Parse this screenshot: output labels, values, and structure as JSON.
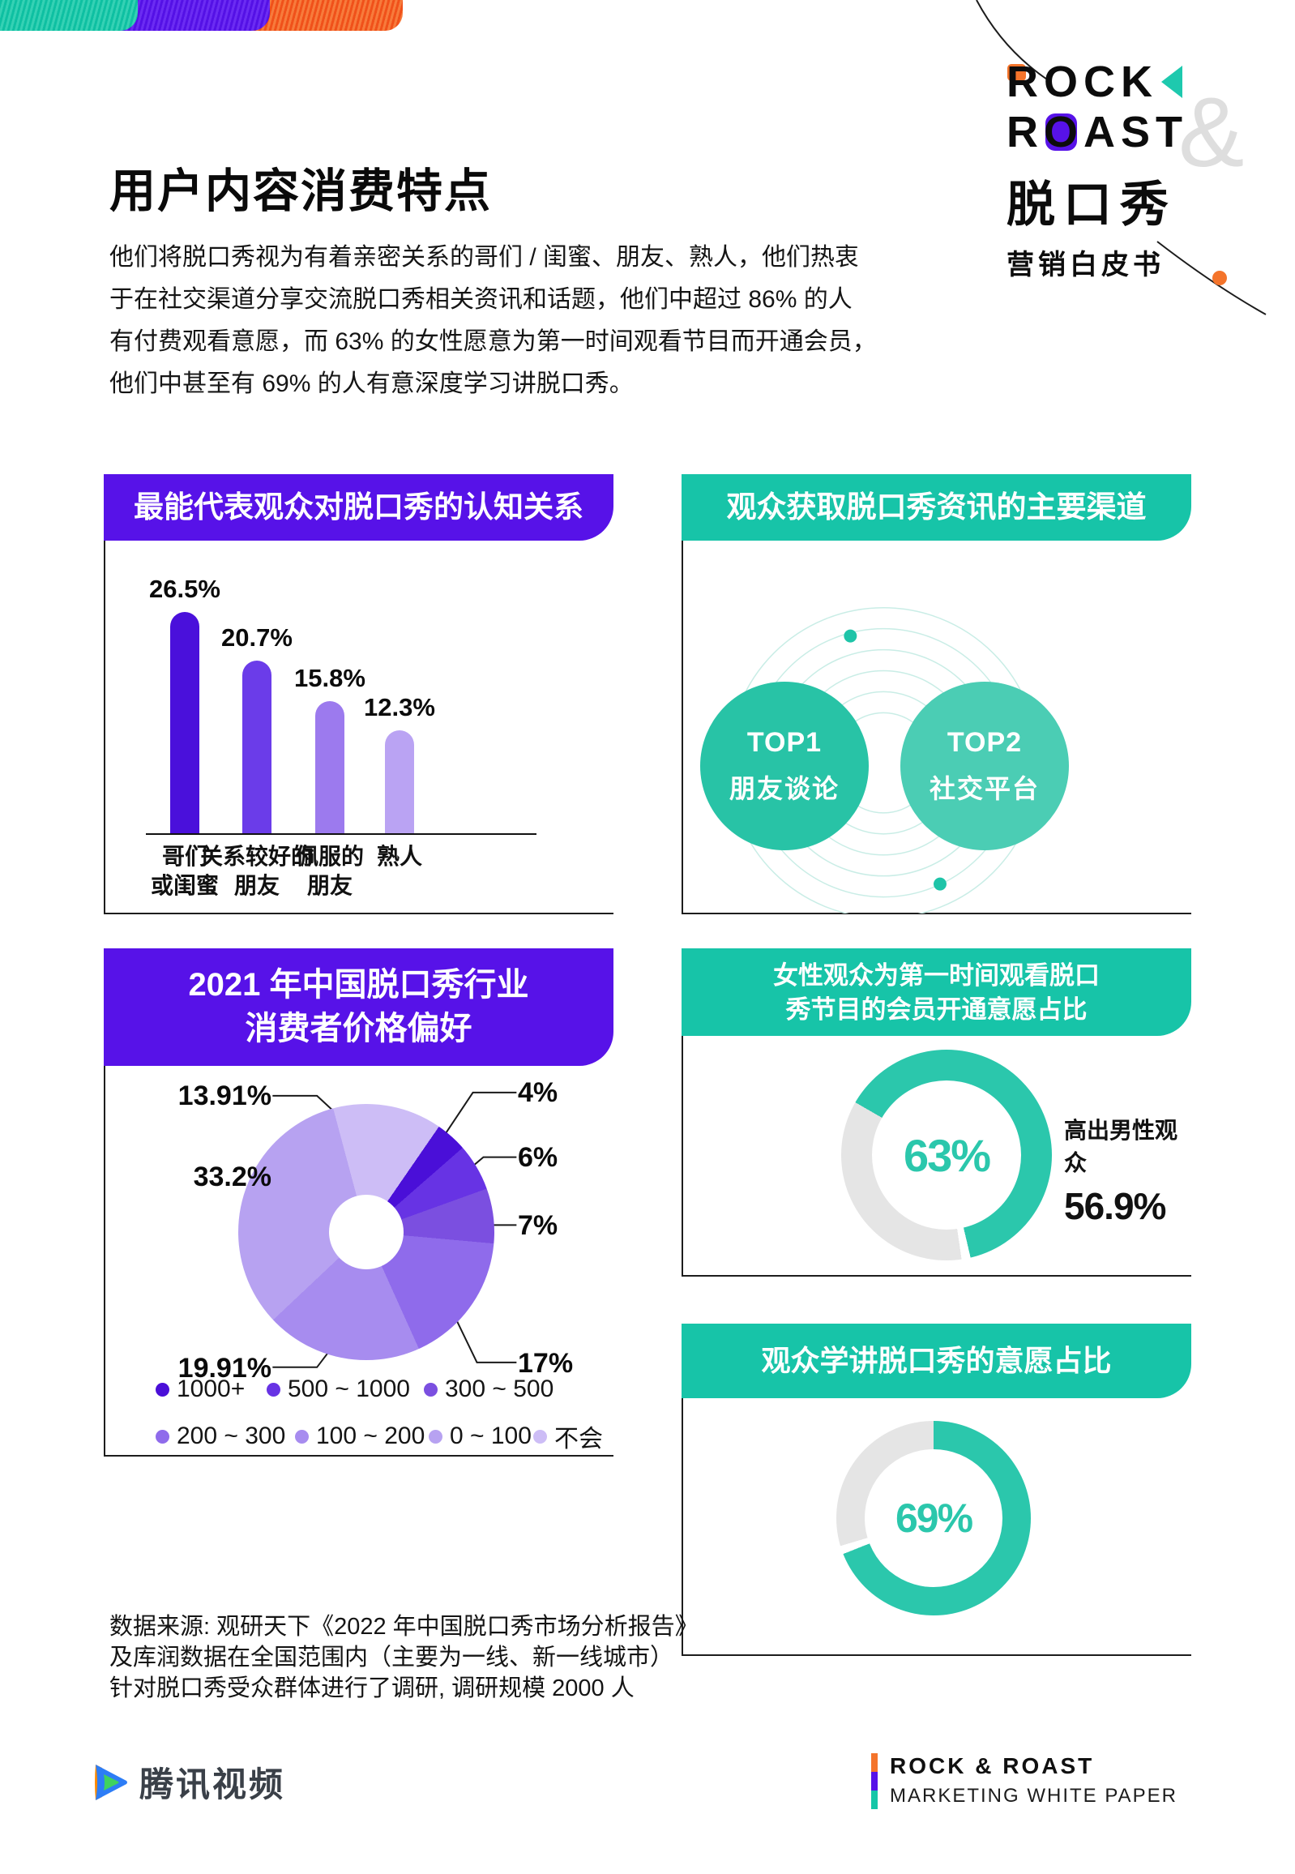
{
  "brand": {
    "purple": "#5712e8",
    "teal": "#17c4a8",
    "orange": "#f4742b",
    "gauge_teal": "#2bc7ac",
    "gauge_gray": "#e5e5e5"
  },
  "logo": {
    "rock": "ROCK",
    "amp": "&",
    "roast_r": "R",
    "roast_o": "O",
    "roast_rest": "AST",
    "cn": "脱口秀",
    "sub": "营销白皮书"
  },
  "title": "用户内容消费特点",
  "intro": {
    "lines": [
      "他们将脱口秀视为有着亲密关系的哥们 / 闺蜜、朋友、熟人，他们热衷",
      "于在社交渠道分享交流脱口秀相关资讯和话题，他们中超过 86% 的人",
      "有付费观看意愿，而 63% 的女性愿意为第一时间观看节目而开通会员，",
      "他们中甚至有 69% 的人有意深度学习讲脱口秀。"
    ]
  },
  "panels": {
    "cognition": {
      "title": "最能代表观众对脱口秀的认知关系"
    },
    "channels": {
      "title": "观众获取脱口秀资讯的主要渠道",
      "top1": {
        "rank": "TOP1",
        "label": "朋友谈论"
      },
      "top2": {
        "rank": "TOP2",
        "label": "社交平台"
      }
    },
    "price": {
      "title_line1": "2021 年中国脱口秀行业",
      "title_line2": "消费者价格偏好",
      "legend_rows": [
        [
          {
            "label": "1000+",
            "color": "#4a0fd8"
          },
          {
            "label": "500 ~ 1000",
            "color": "#6733e4"
          },
          {
            "label": "300 ~ 500",
            "color": "#7b4fe0"
          }
        ],
        [
          {
            "label": "200 ~ 300",
            "color": "#8f6beb"
          },
          {
            "label": "100 ~ 200",
            "color": "#a78cef"
          },
          {
            "label": "0 ~ 100",
            "color": "#b7a2f1"
          },
          {
            "label": "不会",
            "color": "#cdbdf6"
          }
        ]
      ]
    },
    "female": {
      "title_line1": "女性观众为第一时间观看脱口",
      "title_line2": "秀节目的会员开通意愿占比",
      "display": "63%",
      "note_line1": "高出男性观众",
      "note_line2": "56.9%"
    },
    "learn": {
      "title": "观众学讲脱口秀的意愿占比",
      "display": "69%"
    }
  },
  "source": {
    "lines": [
      "数据来源: 观研天下《2022 年中国脱口秀市场分析报告》",
      "及库润数据在全国范围内（主要为一线、新一线城市）",
      "针对脱口秀受众群体进行了调研, 调研规模 2000 人"
    ]
  },
  "footer": {
    "tencent": "腾讯视频",
    "brand": "ROCK & ROAST",
    "sub": "MARKETING WHITE PAPER"
  },
  "chart_data": [
    {
      "type": "bar",
      "title": "最能代表观众对脱口秀的认知关系",
      "categories": [
        "哥们或闺蜜",
        "关系较好的朋友",
        "佩服的朋友",
        "熟人"
      ],
      "category_lines": [
        [
          "哥们",
          "或闺蜜"
        ],
        [
          "关系较好的",
          "朋友"
        ],
        [
          "佩服的",
          "朋友"
        ],
        [
          "熟人",
          ""
        ]
      ],
      "values": [
        26.5,
        20.7,
        15.8,
        12.3
      ],
      "value_labels": [
        "26.5%",
        "20.7%",
        "15.8%",
        "12.3%"
      ],
      "colors": [
        "#4a10db",
        "#6b3ce9",
        "#9c7aee",
        "#baa3f3"
      ],
      "unit": "%",
      "ylim": [
        0,
        30
      ],
      "grid": false,
      "legend": false
    },
    {
      "type": "pie",
      "donut": true,
      "title": "2021 年中国脱口秀行业消费者价格偏好",
      "start_deg": -15,
      "slices": [
        {
          "label": "不会",
          "value": 13.91,
          "display": "13.91%",
          "color": "#cdbdf6"
        },
        {
          "label": "1000+",
          "value": 4,
          "display": "4%",
          "color": "#4a0fd8"
        },
        {
          "label": "500 ~ 1000",
          "value": 6,
          "display": "6%",
          "color": "#6733e4"
        },
        {
          "label": "300 ~ 500",
          "value": 7,
          "display": "7%",
          "color": "#7b4fe0"
        },
        {
          "label": "200 ~ 300",
          "value": 17,
          "display": "17%",
          "color": "#8f6beb"
        },
        {
          "label": "100 ~ 200",
          "value": 19.91,
          "display": "19.91%",
          "color": "#a78cef"
        },
        {
          "label": "0 ~ 100",
          "value": 33.2,
          "display": "33.2%",
          "color": "#b7a2f1"
        }
      ]
    },
    {
      "type": "pie",
      "donut": true,
      "title": "女性观众为第一时间观看脱口秀节目的会员开通意愿占比",
      "percent": 63,
      "display": "63%",
      "annotation": "高出男性观众 56.9%",
      "start_deg": -60,
      "colors": {
        "value": "#2bc7ac",
        "rest": "#e5e5e5"
      }
    },
    {
      "type": "pie",
      "donut": true,
      "title": "观众学讲脱口秀的意愿占比",
      "percent": 69,
      "display": "69%",
      "start_deg": 0,
      "colors": {
        "value": "#2bc7ac",
        "rest": "#e5e5e5"
      }
    }
  ]
}
